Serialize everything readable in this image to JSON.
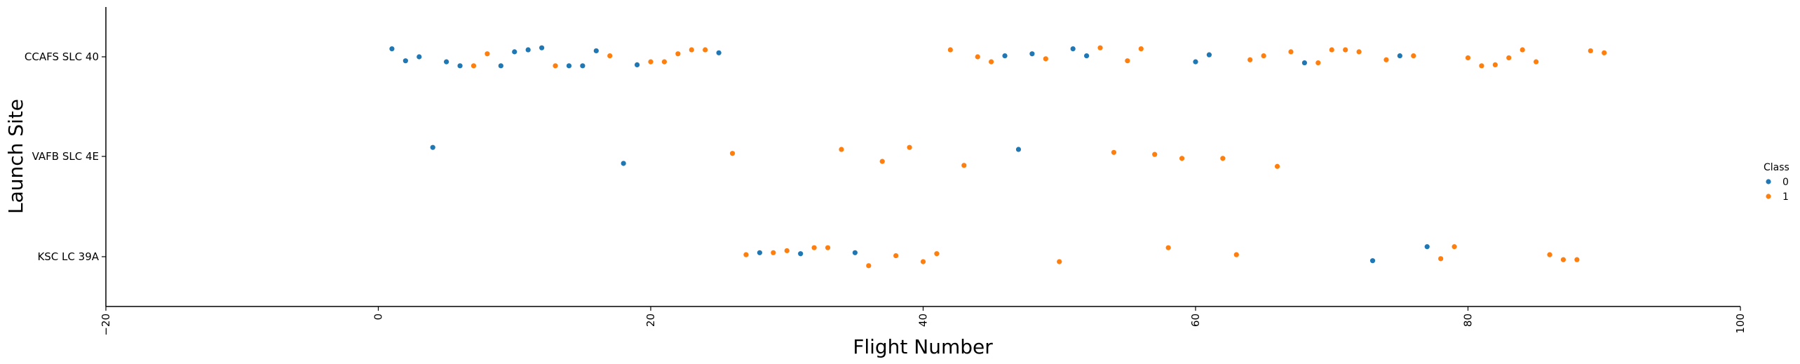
{
  "chart_data": {
    "type": "scatter",
    "title": "",
    "xlabel": "Flight Number",
    "ylabel": "Launch Site",
    "xlim": [
      -20,
      100
    ],
    "xticks": [
      -20,
      0,
      20,
      40,
      60,
      80,
      100
    ],
    "xtick_labels": [
      "−20",
      "0",
      "20",
      "40",
      "60",
      "80",
      "100"
    ],
    "categories": [
      "CCAFS SLC 40",
      "VAFB SLC 4E",
      "KSC LC 39A"
    ],
    "grid": false,
    "legend": {
      "title": "Class",
      "placement": "right",
      "entries": [
        {
          "label": "0",
          "color": "#1f77b4"
        },
        {
          "label": "1",
          "color": "#ff7f0e"
        }
      ]
    },
    "series": [
      {
        "name": "0",
        "color": "#1f77b4",
        "points": [
          {
            "x": 1,
            "site": "CCAFS SLC 40",
            "jitter": 0.08
          },
          {
            "x": 2,
            "site": "CCAFS SLC 40",
            "jitter": -0.04
          },
          {
            "x": 3,
            "site": "CCAFS SLC 40",
            "jitter": 0.0
          },
          {
            "x": 5,
            "site": "CCAFS SLC 40",
            "jitter": -0.05
          },
          {
            "x": 6,
            "site": "CCAFS SLC 40",
            "jitter": -0.09
          },
          {
            "x": 9,
            "site": "CCAFS SLC 40",
            "jitter": -0.09
          },
          {
            "x": 10,
            "site": "CCAFS SLC 40",
            "jitter": 0.05
          },
          {
            "x": 11,
            "site": "CCAFS SLC 40",
            "jitter": 0.07
          },
          {
            "x": 12,
            "site": "CCAFS SLC 40",
            "jitter": 0.09
          },
          {
            "x": 14,
            "site": "CCAFS SLC 40",
            "jitter": -0.09
          },
          {
            "x": 15,
            "site": "CCAFS SLC 40",
            "jitter": -0.09
          },
          {
            "x": 16,
            "site": "CCAFS SLC 40",
            "jitter": 0.06
          },
          {
            "x": 19,
            "site": "CCAFS SLC 40",
            "jitter": -0.08
          },
          {
            "x": 25,
            "site": "CCAFS SLC 40",
            "jitter": 0.04
          },
          {
            "x": 46,
            "site": "CCAFS SLC 40",
            "jitter": 0.01
          },
          {
            "x": 48,
            "site": "CCAFS SLC 40",
            "jitter": 0.03
          },
          {
            "x": 51,
            "site": "CCAFS SLC 40",
            "jitter": 0.08
          },
          {
            "x": 52,
            "site": "CCAFS SLC 40",
            "jitter": 0.01
          },
          {
            "x": 60,
            "site": "CCAFS SLC 40",
            "jitter": -0.05
          },
          {
            "x": 61,
            "site": "CCAFS SLC 40",
            "jitter": 0.02
          },
          {
            "x": 68,
            "site": "CCAFS SLC 40",
            "jitter": -0.06
          },
          {
            "x": 75,
            "site": "CCAFS SLC 40",
            "jitter": 0.01
          },
          {
            "x": 4,
            "site": "VAFB SLC 4E",
            "jitter": 0.09
          },
          {
            "x": 18,
            "site": "VAFB SLC 4E",
            "jitter": -0.07
          },
          {
            "x": 47,
            "site": "VAFB SLC 4E",
            "jitter": 0.07
          },
          {
            "x": 31,
            "site": "KSC LC 39A",
            "jitter": 0.03
          },
          {
            "x": 28,
            "site": "KSC LC 39A",
            "jitter": 0.04
          },
          {
            "x": 35,
            "site": "KSC LC 39A",
            "jitter": 0.04
          },
          {
            "x": 73,
            "site": "KSC LC 39A",
            "jitter": -0.04
          },
          {
            "x": 77,
            "site": "KSC LC 39A",
            "jitter": 0.1
          }
        ]
      },
      {
        "name": "1",
        "color": "#ff7f0e",
        "points": [
          {
            "x": 7,
            "site": "CCAFS SLC 40",
            "jitter": -0.09
          },
          {
            "x": 8,
            "site": "CCAFS SLC 40",
            "jitter": 0.03
          },
          {
            "x": 13,
            "site": "CCAFS SLC 40",
            "jitter": -0.09
          },
          {
            "x": 17,
            "site": "CCAFS SLC 40",
            "jitter": 0.01
          },
          {
            "x": 20,
            "site": "CCAFS SLC 40",
            "jitter": -0.05
          },
          {
            "x": 21,
            "site": "CCAFS SLC 40",
            "jitter": -0.05
          },
          {
            "x": 22,
            "site": "CCAFS SLC 40",
            "jitter": 0.03
          },
          {
            "x": 23,
            "site": "CCAFS SLC 40",
            "jitter": 0.07
          },
          {
            "x": 24,
            "site": "CCAFS SLC 40",
            "jitter": 0.07
          },
          {
            "x": 42,
            "site": "CCAFS SLC 40",
            "jitter": 0.07
          },
          {
            "x": 44,
            "site": "CCAFS SLC 40",
            "jitter": 0.0
          },
          {
            "x": 45,
            "site": "CCAFS SLC 40",
            "jitter": -0.05
          },
          {
            "x": 49,
            "site": "CCAFS SLC 40",
            "jitter": -0.02
          },
          {
            "x": 53,
            "site": "CCAFS SLC 40",
            "jitter": 0.09
          },
          {
            "x": 55,
            "site": "CCAFS SLC 40",
            "jitter": -0.04
          },
          {
            "x": 56,
            "site": "CCAFS SLC 40",
            "jitter": 0.08
          },
          {
            "x": 64,
            "site": "CCAFS SLC 40",
            "jitter": -0.03
          },
          {
            "x": 65,
            "site": "CCAFS SLC 40",
            "jitter": 0.01
          },
          {
            "x": 67,
            "site": "CCAFS SLC 40",
            "jitter": 0.05
          },
          {
            "x": 69,
            "site": "CCAFS SLC 40",
            "jitter": -0.06
          },
          {
            "x": 70,
            "site": "CCAFS SLC 40",
            "jitter": 0.07
          },
          {
            "x": 71,
            "site": "CCAFS SLC 40",
            "jitter": 0.07
          },
          {
            "x": 72,
            "site": "CCAFS SLC 40",
            "jitter": 0.05
          },
          {
            "x": 74,
            "site": "CCAFS SLC 40",
            "jitter": -0.03
          },
          {
            "x": 76,
            "site": "CCAFS SLC 40",
            "jitter": 0.01
          },
          {
            "x": 80,
            "site": "CCAFS SLC 40",
            "jitter": -0.01
          },
          {
            "x": 81,
            "site": "CCAFS SLC 40",
            "jitter": -0.09
          },
          {
            "x": 82,
            "site": "CCAFS SLC 40",
            "jitter": -0.08
          },
          {
            "x": 83,
            "site": "CCAFS SLC 40",
            "jitter": -0.01
          },
          {
            "x": 84,
            "site": "CCAFS SLC 40",
            "jitter": 0.07
          },
          {
            "x": 85,
            "site": "CCAFS SLC 40",
            "jitter": -0.05
          },
          {
            "x": 89,
            "site": "CCAFS SLC 40",
            "jitter": 0.06
          },
          {
            "x": 90,
            "site": "CCAFS SLC 40",
            "jitter": 0.04
          },
          {
            "x": 26,
            "site": "VAFB SLC 4E",
            "jitter": 0.03
          },
          {
            "x": 34,
            "site": "VAFB SLC 4E",
            "jitter": 0.07
          },
          {
            "x": 37,
            "site": "VAFB SLC 4E",
            "jitter": -0.05
          },
          {
            "x": 39,
            "site": "VAFB SLC 4E",
            "jitter": 0.09
          },
          {
            "x": 43,
            "site": "VAFB SLC 4E",
            "jitter": -0.09
          },
          {
            "x": 54,
            "site": "VAFB SLC 4E",
            "jitter": 0.04
          },
          {
            "x": 57,
            "site": "VAFB SLC 4E",
            "jitter": 0.02
          },
          {
            "x": 59,
            "site": "VAFB SLC 4E",
            "jitter": -0.02
          },
          {
            "x": 62,
            "site": "VAFB SLC 4E",
            "jitter": -0.02
          },
          {
            "x": 66,
            "site": "VAFB SLC 4E",
            "jitter": -0.1
          },
          {
            "x": 27,
            "site": "KSC LC 39A",
            "jitter": 0.02
          },
          {
            "x": 29,
            "site": "KSC LC 39A",
            "jitter": 0.04
          },
          {
            "x": 30,
            "site": "KSC LC 39A",
            "jitter": 0.06
          },
          {
            "x": 32,
            "site": "KSC LC 39A",
            "jitter": 0.09
          },
          {
            "x": 33,
            "site": "KSC LC 39A",
            "jitter": 0.09
          },
          {
            "x": 36,
            "site": "KSC LC 39A",
            "jitter": -0.09
          },
          {
            "x": 38,
            "site": "KSC LC 39A",
            "jitter": 0.01
          },
          {
            "x": 40,
            "site": "KSC LC 39A",
            "jitter": -0.05
          },
          {
            "x": 41,
            "site": "KSC LC 39A",
            "jitter": 0.03
          },
          {
            "x": 50,
            "site": "KSC LC 39A",
            "jitter": -0.05
          },
          {
            "x": 58,
            "site": "KSC LC 39A",
            "jitter": 0.09
          },
          {
            "x": 63,
            "site": "KSC LC 39A",
            "jitter": 0.02
          },
          {
            "x": 78,
            "site": "KSC LC 39A",
            "jitter": -0.02
          },
          {
            "x": 79,
            "site": "KSC LC 39A",
            "jitter": 0.1
          },
          {
            "x": 86,
            "site": "KSC LC 39A",
            "jitter": 0.02
          },
          {
            "x": 87,
            "site": "KSC LC 39A",
            "jitter": -0.03
          },
          {
            "x": 88,
            "site": "KSC LC 39A",
            "jitter": -0.03
          }
        ]
      }
    ]
  }
}
